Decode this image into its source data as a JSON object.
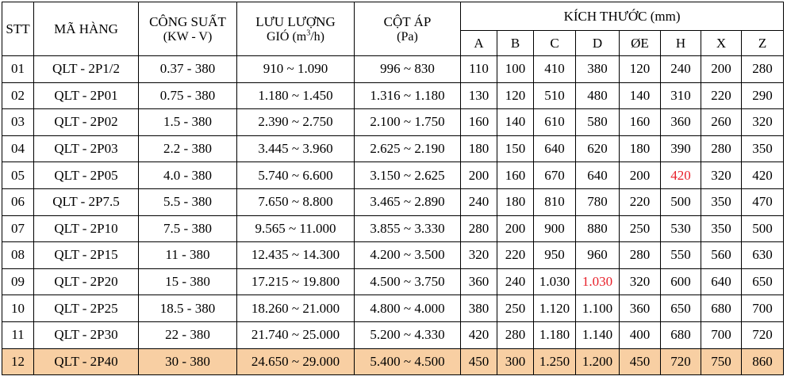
{
  "header": {
    "stt": "STT",
    "model": "MÃ HÀNG",
    "power": {
      "line1": "CÔNG SUẤT",
      "line2": "(KW - V)"
    },
    "airflow": {
      "line1": "LƯU LƯỢNG",
      "line2_pre": "GIÓ (m",
      "line2_sup": "3",
      "line2_post": "/h)"
    },
    "pressure": {
      "line1": "CỘT ÁP",
      "line2": "(Pa)"
    },
    "dimensions": "KÍCH THƯỚC (mm)",
    "dim_cols": [
      "A",
      "B",
      "C",
      "D",
      "ØE",
      "H",
      "X",
      "Z"
    ]
  },
  "rows": [
    {
      "stt": "01",
      "model": "QLT - 2P1/2",
      "power": "0.37 - 380",
      "airflow": "910 ~ 1.090",
      "pressure": "996 ~ 830",
      "A": "110",
      "B": "100",
      "C": "410",
      "D": "380",
      "E": "120",
      "H": "240",
      "X": "200",
      "Z": "280"
    },
    {
      "stt": "02",
      "model": "QLT - 2P01",
      "power": "0.75 - 380",
      "airflow": "1.180 ~ 1.450",
      "pressure": "1.316 ~ 1.180",
      "A": "130",
      "B": "120",
      "C": "510",
      "D": "480",
      "E": "140",
      "H": "310",
      "X": "220",
      "Z": "290"
    },
    {
      "stt": "03",
      "model": "QLT - 2P02",
      "power": "1.5 - 380",
      "airflow": "2.390 ~ 2.750",
      "pressure": "2.100 ~ 1.750",
      "A": "160",
      "B": "140",
      "C": "610",
      "D": "580",
      "E": "160",
      "H": "360",
      "X": "260",
      "Z": "320"
    },
    {
      "stt": "04",
      "model": "QLT - 2P03",
      "power": "2.2 - 380",
      "airflow": "3.445 ~ 3.960",
      "pressure": "2.625 ~ 2.190",
      "A": "180",
      "B": "150",
      "C": "640",
      "D": "620",
      "E": "180",
      "H": "390",
      "X": "280",
      "Z": "350"
    },
    {
      "stt": "05",
      "model": "QLT - 2P05",
      "power": "4.0  - 380",
      "airflow": "5.740 ~ 6.600",
      "pressure": "3.150 ~ 2.625",
      "A": "200",
      "B": "160",
      "C": "670",
      "D": "640",
      "E": "200",
      "H": "420",
      "X": "320",
      "Z": "420"
    },
    {
      "stt": "06",
      "model": "QLT - 2P7.5",
      "power": "5.5 - 380",
      "airflow": "7.650 ~ 8.800",
      "pressure": "3.465 ~ 2.890",
      "A": "240",
      "B": "180",
      "C": "810",
      "D": "780",
      "E": "220",
      "H": "500",
      "X": "350",
      "Z": "470"
    },
    {
      "stt": "07",
      "model": "QLT - 2P10",
      "power": "7.5 - 380",
      "airflow": "9.565 ~ 11.000",
      "pressure": "3.855 ~ 3.330",
      "A": "280",
      "B": "200",
      "C": "900",
      "D": "880",
      "E": "250",
      "H": "530",
      "X": "350",
      "Z": "500"
    },
    {
      "stt": "08",
      "model": "QLT - 2P15",
      "power": "11 - 380",
      "airflow": "12.435 ~ 14.300",
      "pressure": "4.200 ~ 3.500",
      "A": "320",
      "B": "220",
      "C": "950",
      "D": "960",
      "E": "280",
      "H": "550",
      "X": "560",
      "Z": "630"
    },
    {
      "stt": "09",
      "model": "QLT - 2P20",
      "power": "15 - 380",
      "airflow": "17.215 ~ 19.800",
      "pressure": "4.500 ~ 3.750",
      "A": "360",
      "B": "240",
      "C": "1.030",
      "D": "1.030",
      "E": "320",
      "H": "600",
      "X": "640",
      "Z": "650"
    },
    {
      "stt": "10",
      "model": "QLT - 2P25",
      "power": "18.5 - 380",
      "airflow": "18.260 ~ 21.000",
      "pressure": "4.800 ~ 4.000",
      "A": "380",
      "B": "250",
      "C": "1.120",
      "D": "1.100",
      "E": "360",
      "H": "650",
      "X": "680",
      "Z": "700"
    },
    {
      "stt": "11",
      "model": "QLT - 2P30",
      "power": "22 - 380",
      "airflow": "21.740 ~ 25.000",
      "pressure": "5.200 ~ 4.330",
      "A": "420",
      "B": "280",
      "C": "1.180",
      "D": "1.140",
      "E": "400",
      "H": "680",
      "X": "700",
      "Z": "720"
    },
    {
      "stt": "12",
      "model": "QLT - 2P40",
      "power": "30 - 380",
      "airflow": "24.650 ~ 29.000",
      "pressure": "5.400 ~ 4.500",
      "A": "450",
      "B": "300",
      "C": "1.250",
      "D": "1.200",
      "E": "450",
      "H": "720",
      "X": "750",
      "Z": "860"
    }
  ],
  "highlight": {
    "row_stt": "12",
    "color": "#f8cfa3"
  },
  "red_values": {
    "color": "#e8202a",
    "cells": [
      {
        "row_stt": "05",
        "col": "H"
      },
      {
        "row_stt": "09",
        "col": "D"
      }
    ]
  }
}
